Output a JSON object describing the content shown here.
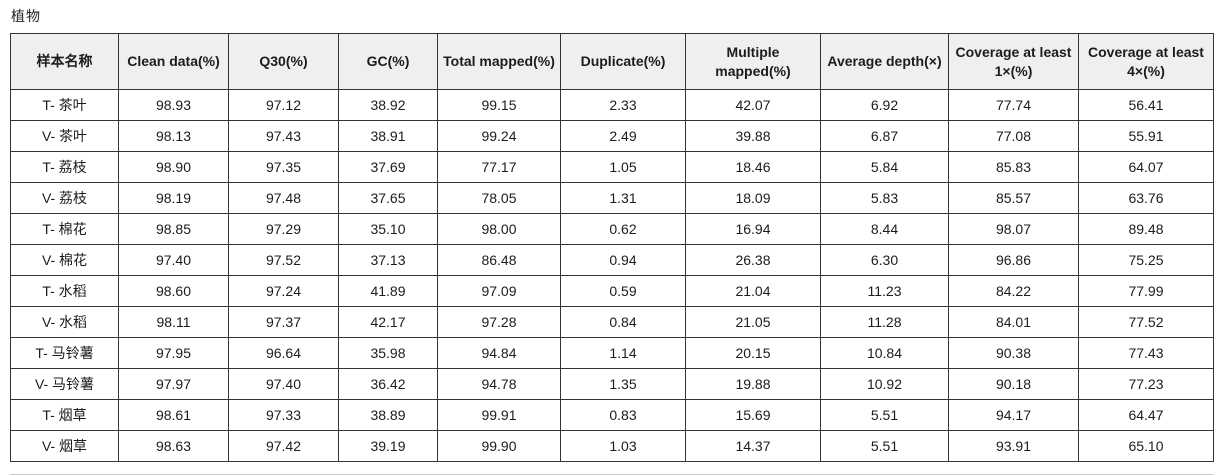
{
  "title": "植物",
  "table": {
    "headers": [
      "样本名称",
      "Clean data(%)",
      "Q30(%)",
      "GC(%)",
      "Total mapped(%)",
      "Duplicate(%)",
      "Multiple mapped(%)",
      "Average depth(×)",
      "Coverage at least 1×(%)",
      "Coverage at least 4×(%)"
    ],
    "rows": [
      [
        "T- 茶叶",
        "98.93",
        "97.12",
        "38.92",
        "99.15",
        "2.33",
        "42.07",
        "6.92",
        "77.74",
        "56.41"
      ],
      [
        "V- 茶叶",
        "98.13",
        "97.43",
        "38.91",
        "99.24",
        "2.49",
        "39.88",
        "6.87",
        "77.08",
        "55.91"
      ],
      [
        "T- 荔枝",
        "98.90",
        "97.35",
        "37.69",
        "77.17",
        "1.05",
        "18.46",
        "5.84",
        "85.83",
        "64.07"
      ],
      [
        "V- 荔枝",
        "98.19",
        "97.48",
        "37.65",
        "78.05",
        "1.31",
        "18.09",
        "5.83",
        "85.57",
        "63.76"
      ],
      [
        "T- 棉花",
        "98.85",
        "97.29",
        "35.10",
        "98.00",
        "0.62",
        "16.94",
        "8.44",
        "98.07",
        "89.48"
      ],
      [
        "V- 棉花",
        "97.40",
        "97.52",
        "37.13",
        "86.48",
        "0.94",
        "26.38",
        "6.30",
        "96.86",
        "75.25"
      ],
      [
        "T- 水稻",
        "98.60",
        "97.24",
        "41.89",
        "97.09",
        "0.59",
        "21.04",
        "11.23",
        "84.22",
        "77.99"
      ],
      [
        "V- 水稻",
        "98.11",
        "97.37",
        "42.17",
        "97.28",
        "0.84",
        "21.05",
        "11.28",
        "84.01",
        "77.52"
      ],
      [
        "T- 马铃薯",
        "97.95",
        "96.64",
        "35.98",
        "94.84",
        "1.14",
        "20.15",
        "10.84",
        "90.38",
        "77.43"
      ],
      [
        "V- 马铃薯",
        "97.97",
        "97.40",
        "36.42",
        "94.78",
        "1.35",
        "19.88",
        "10.92",
        "90.18",
        "77.23"
      ],
      [
        "T- 烟草",
        "98.61",
        "97.33",
        "38.89",
        "99.91",
        "0.83",
        "15.69",
        "5.51",
        "94.17",
        "64.47"
      ],
      [
        "V- 烟草",
        "98.63",
        "97.42",
        "39.19",
        "99.90",
        "1.03",
        "14.37",
        "5.51",
        "93.91",
        "65.10"
      ]
    ]
  }
}
